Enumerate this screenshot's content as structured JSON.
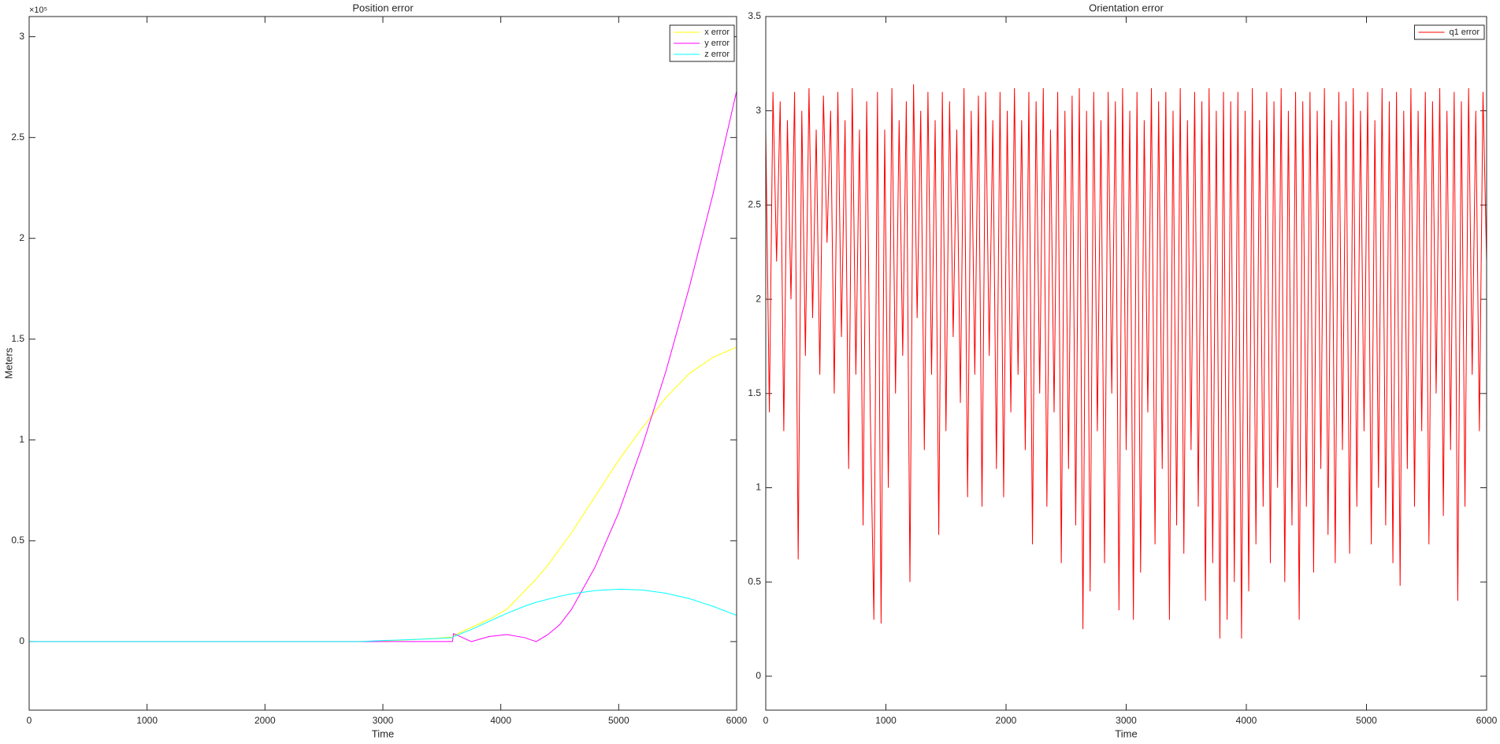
{
  "chart_data": [
    {
      "type": "line",
      "title": "Position error",
      "x_label": "Time",
      "y_label": "Meters",
      "y_exponent_label": "×10⁵",
      "x": [
        0,
        500,
        1000,
        1500,
        2000,
        2500,
        2800,
        3000,
        3200,
        3400,
        3590,
        3600,
        3750,
        3900,
        4050,
        4200,
        4300,
        4400,
        4500,
        4600,
        4800,
        5000,
        5200,
        5400,
        5600,
        5800,
        6000
      ],
      "series": [
        {
          "name": "x error",
          "color": "#ffff00",
          "values": [
            0,
            0,
            0,
            0,
            0,
            0,
            0,
            300,
            800,
            1500,
            2200,
            3000,
            7000,
            11000,
            16000,
            25000,
            31000,
            38000,
            46000,
            54000,
            72000,
            90000,
            106000,
            121000,
            133000,
            141000,
            146000
          ]
        },
        {
          "name": "y error",
          "color": "#ff00ff",
          "values": [
            0,
            0,
            0,
            0,
            0,
            0,
            0,
            0,
            0,
            0,
            0,
            4000,
            0,
            2500,
            3500,
            2000,
            0,
            3500,
            8400,
            16000,
            37000,
            64000,
            97000,
            134000,
            176000,
            222000,
            273000
          ]
        },
        {
          "name": "z error",
          "color": "#00ffff",
          "values": [
            0,
            0,
            0,
            0,
            0,
            0,
            0,
            500,
            900,
            1400,
            1900,
            2500,
            6000,
            10000,
            14000,
            17500,
            19500,
            21000,
            22500,
            23700,
            25300,
            26000,
            25600,
            24000,
            21300,
            17500,
            13000
          ]
        }
      ],
      "xlim": [
        0,
        6000
      ],
      "xticks": [
        0,
        1000,
        2000,
        3000,
        4000,
        5000,
        6000
      ],
      "ylim": [
        -34000,
        310000
      ],
      "yticks": [
        0,
        {
          "value": 50000,
          "label": "0.5"
        },
        {
          "value": 100000,
          "label": "1"
        },
        {
          "value": 150000,
          "label": "1.5"
        },
        {
          "value": 200000,
          "label": "2"
        },
        {
          "value": 250000,
          "label": "2.5"
        },
        {
          "value": 300000,
          "label": "3"
        }
      ],
      "grid": false,
      "legend": "northeast"
    },
    {
      "type": "line",
      "title": "Orientation error",
      "x_label": "Time",
      "x": [
        0,
        30,
        60,
        90,
        120,
        150,
        180,
        210,
        240,
        270,
        300,
        330,
        360,
        390,
        420,
        450,
        480,
        510,
        540,
        570,
        600,
        630,
        660,
        690,
        720,
        750,
        780,
        810,
        840,
        870,
        900,
        930,
        960,
        990,
        1020,
        1050,
        1080,
        1110,
        1140,
        1170,
        1200,
        1230,
        1260,
        1290,
        1320,
        1350,
        1380,
        1410,
        1440,
        1470,
        1500,
        1530,
        1560,
        1590,
        1620,
        1650,
        1680,
        1710,
        1740,
        1770,
        1800,
        1830,
        1860,
        1890,
        1920,
        1950,
        1980,
        2010,
        2040,
        2070,
        2100,
        2130,
        2160,
        2190,
        2220,
        2250,
        2280,
        2310,
        2340,
        2370,
        2400,
        2430,
        2460,
        2490,
        2520,
        2550,
        2580,
        2610,
        2640,
        2670,
        2700,
        2730,
        2760,
        2790,
        2820,
        2850,
        2880,
        2910,
        2940,
        2970,
        3000,
        3030,
        3060,
        3090,
        3120,
        3150,
        3180,
        3210,
        3240,
        3270,
        3300,
        3330,
        3360,
        3390,
        3420,
        3450,
        3480,
        3510,
        3540,
        3570,
        3600,
        3630,
        3660,
        3690,
        3720,
        3750,
        3780,
        3810,
        3840,
        3870,
        3900,
        3930,
        3960,
        3990,
        4020,
        4050,
        4080,
        4110,
        4140,
        4170,
        4200,
        4230,
        4260,
        4290,
        4320,
        4350,
        4380,
        4410,
        4440,
        4470,
        4500,
        4530,
        4560,
        4590,
        4620,
        4650,
        4680,
        4710,
        4740,
        4770,
        4800,
        4830,
        4860,
        4890,
        4920,
        4950,
        4980,
        5010,
        5040,
        5070,
        5100,
        5130,
        5160,
        5190,
        5220,
        5250,
        5280,
        5310,
        5340,
        5370,
        5400,
        5430,
        5460,
        5490,
        5520,
        5550,
        5580,
        5610,
        5640,
        5670,
        5700,
        5730,
        5760,
        5790,
        5820,
        5850,
        5880,
        5910,
        5940,
        5970,
        6000
      ],
      "series": [
        {
          "name": "q1 error",
          "color": "#ff0000",
          "values": [
            2.9,
            1.4,
            3.1,
            2.2,
            3.05,
            1.3,
            2.95,
            2.0,
            3.1,
            0.62,
            3.0,
            1.7,
            3.12,
            1.9,
            2.9,
            1.6,
            3.08,
            2.3,
            3.0,
            1.5,
            3.1,
            1.8,
            2.95,
            1.1,
            3.12,
            1.6,
            2.9,
            0.8,
            3.05,
            1.4,
            0.3,
            3.1,
            0.28,
            2.9,
            1.0,
            3.12,
            1.5,
            2.95,
            1.7,
            3.05,
            0.5,
            3.14,
            1.9,
            3.0,
            1.2,
            3.1,
            1.6,
            2.95,
            0.75,
            3.1,
            1.3,
            3.05,
            1.8,
            2.9,
            1.45,
            3.12,
            0.95,
            3.0,
            1.6,
            3.08,
            0.9,
            3.1,
            1.7,
            2.95,
            1.1,
            3.1,
            0.95,
            3.0,
            1.4,
            3.12,
            1.6,
            2.95,
            1.2,
            3.1,
            0.7,
            3.05,
            1.5,
            3.12,
            0.9,
            2.9,
            1.4,
            3.1,
            0.6,
            3.0,
            1.1,
            3.08,
            0.8,
            3.12,
            0.25,
            3.0,
            0.45,
            3.1,
            1.3,
            2.95,
            0.6,
            3.1,
            1.5,
            3.05,
            0.35,
            3.12,
            1.2,
            3.0,
            0.3,
            3.1,
            0.55,
            2.95,
            1.4,
            3.12,
            0.7,
            3.05,
            1.1,
            3.1,
            0.3,
            3.0,
            0.8,
            3.12,
            0.65,
            2.95,
            1.2,
            3.1,
            0.9,
            3.05,
            0.4,
            3.12,
            0.6,
            3.0,
            0.2,
            3.1,
            0.3,
            3.05,
            0.5,
            3.1,
            0.2,
            3.0,
            0.45,
            3.12,
            0.7,
            2.95,
            0.9,
            3.1,
            0.6,
            3.05,
            1.0,
            3.12,
            0.5,
            3.0,
            0.8,
            3.1,
            0.3,
            3.05,
            0.9,
            3.1,
            0.55,
            3.0,
            1.1,
            3.12,
            0.75,
            2.95,
            0.6,
            3.1,
            1.2,
            3.05,
            0.65,
            3.12,
            0.9,
            3.0,
            1.3,
            3.1,
            0.7,
            2.95,
            1.0,
            3.12,
            0.8,
            3.05,
            0.6,
            3.1,
            0.48,
            3.0,
            1.1,
            3.12,
            0.9,
            3.0,
            1.3,
            3.1,
            0.7,
            3.05,
            1.5,
            3.12,
            0.85,
            3.0,
            1.2,
            3.1,
            0.4,
            3.05,
            0.9,
            3.12,
            1.6,
            3.0,
            1.3,
            3.1,
            2.2
          ]
        }
      ],
      "xlim": [
        0,
        6000
      ],
      "xticks": [
        0,
        1000,
        2000,
        3000,
        4000,
        5000,
        6000
      ],
      "ylim": [
        -0.18,
        3.5
      ],
      "yticks": [
        0,
        0.5,
        1,
        1.5,
        2,
        2.5,
        3,
        3.5
      ],
      "grid": false,
      "legend": "northeast"
    }
  ]
}
